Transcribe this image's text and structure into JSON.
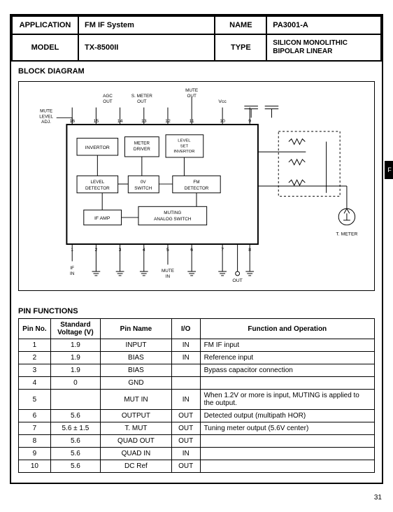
{
  "header": {
    "application_label": "APPLICATION",
    "application_value": "FM IF System",
    "name_label": "NAME",
    "name_value": "PA3001-A",
    "model_label": "MODEL",
    "model_value": "TX-8500II",
    "type_label": "TYPE",
    "type_value": "SILICON MONOLITHIC BIPOLAR LINEAR"
  },
  "block_diagram": {
    "title": "BLOCK DIAGRAM",
    "top_labels": {
      "mute_level_adj": "MUTE LEVEL ADJ.",
      "agc_out": "AGC OUT",
      "s_meter_out": "S. METER OUT",
      "mute_out": "MUTE OUT",
      "vcc": "Vcc"
    },
    "blocks": {
      "invertor": "INVERTOR",
      "meter_driver": "METER DRIVER",
      "level_set_invertor": "LEVEL SET INVERTOR",
      "level_detector": "LEVEL DETECTOR",
      "ov_switch": "0V SWITCH",
      "fm_detector": "FM DETECTOR",
      "if_amp": "IF AMP",
      "muting_analog_switch": "MUTING ANALOG SWITCH"
    },
    "bottom_labels": {
      "if_in": "IF IN",
      "mute_in": "MUTE IN",
      "out": "OUT",
      "t_meter": "T. METER"
    },
    "pins_top": [
      "16",
      "15",
      "14",
      "13",
      "12",
      "11",
      "10",
      "9"
    ],
    "pins_bottom": [
      "1",
      "2",
      "3",
      "4",
      "5",
      "6",
      "7",
      "8"
    ],
    "colors": {
      "line": "#000000",
      "bg": "#ffffff"
    }
  },
  "pin_functions": {
    "title": "PIN FUNCTIONS",
    "columns": {
      "pin_no": "Pin No.",
      "voltage": "Standard Voltage (V)",
      "pin_name": "Pin Name",
      "io": "I/O",
      "func": "Function and Operation"
    },
    "rows": [
      {
        "no": "1",
        "v": "1.9",
        "name": "INPUT",
        "io": "IN",
        "func": "FM IF input"
      },
      {
        "no": "2",
        "v": "1.9",
        "name": "BIAS",
        "io": "IN",
        "func": "Reference input"
      },
      {
        "no": "3",
        "v": "1.9",
        "name": "BIAS",
        "io": "",
        "func": "Bypass capacitor connection"
      },
      {
        "no": "4",
        "v": "0",
        "name": "GND",
        "io": "",
        "func": ""
      },
      {
        "no": "5",
        "v": "",
        "name": "MUT IN",
        "io": "IN",
        "func": "When 1.2V or more is input, MUTING is applied to the output."
      },
      {
        "no": "6",
        "v": "5.6",
        "name": "OUTPUT",
        "io": "OUT",
        "func": "Detected output (multipath HOR)"
      },
      {
        "no": "7",
        "v": "5.6 ± 1.5",
        "name": "T. MUT",
        "io": "OUT",
        "func": "Tuning meter output (5.6V center)"
      },
      {
        "no": "8",
        "v": "5.6",
        "name": "QUAD OUT",
        "io": "OUT",
        "func": ""
      },
      {
        "no": "9",
        "v": "5.6",
        "name": "QUAD IN",
        "io": "IN",
        "func": ""
      },
      {
        "no": "10",
        "v": "5.6",
        "name": "DC Ref",
        "io": "OUT",
        "func": ""
      }
    ]
  },
  "page_number": "31",
  "side_tab": "F"
}
